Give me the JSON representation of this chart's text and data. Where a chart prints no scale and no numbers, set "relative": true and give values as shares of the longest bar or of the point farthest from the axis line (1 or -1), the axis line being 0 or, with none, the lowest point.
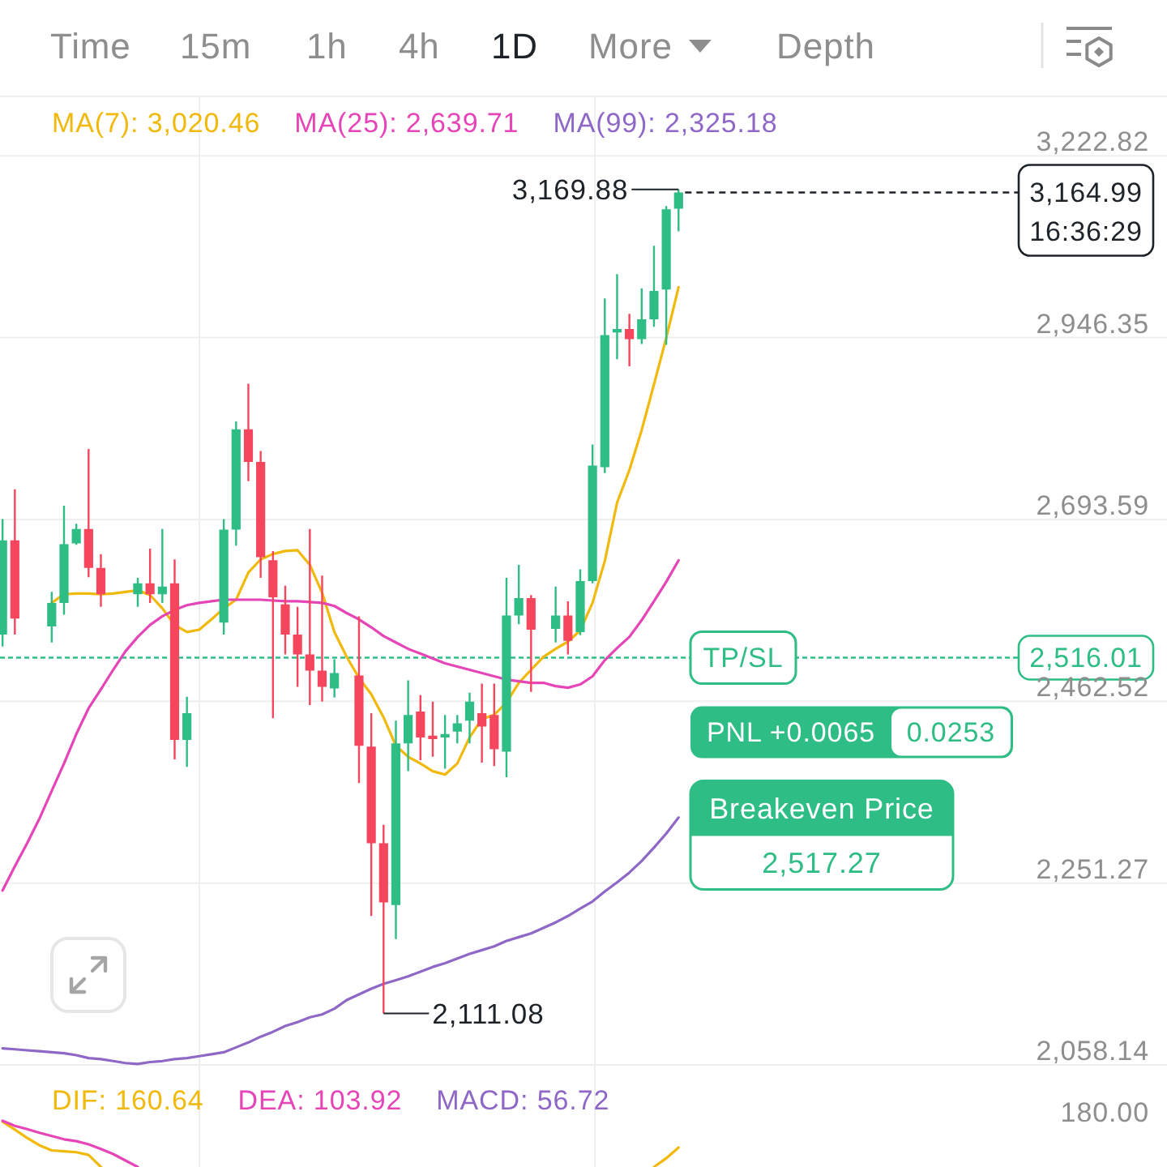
{
  "chart_data": [
    {
      "type": "other",
      "annotations": [
        "Time",
        "15m",
        "1h",
        "4h",
        "1D",
        "More",
        "Depth"
      ]
    },
    {
      "type": "candlestick",
      "categories": [
        null,
        null,
        null,
        null,
        null,
        null,
        null,
        null,
        null,
        null,
        null,
        null,
        null,
        null,
        null,
        null,
        null,
        null,
        null,
        null,
        null,
        null,
        null,
        null,
        null,
        null,
        null,
        null,
        null,
        null,
        null,
        null,
        null,
        null,
        null,
        null,
        null,
        null,
        null,
        null,
        null,
        null,
        null,
        null,
        null,
        null,
        null,
        null,
        null,
        null,
        null,
        null,
        null,
        null,
        null,
        null
      ],
      "ohlc": [
        [
          2545,
          2694,
          2530,
          2666
        ],
        [
          2666,
          2734,
          2545,
          2565
        ],
        null,
        null,
        [
          2555,
          2599,
          2535,
          2585
        ],
        [
          2585,
          2712,
          2570,
          2661
        ],
        [
          2662,
          2688,
          2660,
          2681
        ],
        [
          2681,
          2789,
          2618,
          2630
        ],
        [
          2630,
          2648,
          2580,
          2596
        ],
        null,
        null,
        [
          2596,
          2617,
          2580,
          2610
        ],
        [
          2610,
          2655,
          2585,
          2596
        ],
        [
          2596,
          2681,
          2585,
          2606
        ],
        [
          2610,
          2641,
          2393,
          2416
        ],
        [
          2416,
          2468,
          2384,
          2448
        ],
        null,
        null,
        [
          2560,
          2694,
          2545,
          2680
        ],
        [
          2680,
          2827,
          2659,
          2816
        ],
        [
          2816,
          2880,
          2745,
          2771
        ],
        [
          2771,
          2786,
          2617,
          2644
        ],
        [
          2640,
          2652,
          2442,
          2592
        ],
        [
          2583,
          2607,
          2520,
          2545
        ],
        [
          2545,
          2580,
          2480,
          2520
        ],
        [
          2520,
          2681,
          2458,
          2500
        ],
        [
          2500,
          2620,
          2462,
          2480
        ],
        [
          2478,
          2514,
          2467,
          2497
        ],
        null,
        [
          2494,
          2568,
          2365,
          2409
        ],
        [
          2408,
          2448,
          2215,
          2296
        ],
        [
          2296,
          2317,
          2111.08,
          2230
        ],
        [
          2227,
          2439,
          2190,
          2412
        ],
        [
          2412,
          2488,
          2379,
          2446
        ],
        [
          2450,
          2470,
          2392,
          2419
        ],
        [
          2421,
          2462,
          2396,
          2417
        ],
        [
          2419,
          2446,
          2382,
          2423
        ],
        [
          2426,
          2446,
          2412,
          2436
        ],
        [
          2439,
          2473,
          2412,
          2462
        ],
        [
          2448,
          2484,
          2389,
          2432
        ],
        [
          2446,
          2484,
          2385,
          2405
        ],
        [
          2402,
          2617,
          2372,
          2569
        ],
        [
          2569,
          2634,
          2558,
          2591
        ],
        [
          2591,
          2595,
          2474,
          2551
        ],
        null,
        [
          2552,
          2606,
          2535,
          2569
        ],
        [
          2569,
          2587,
          2520,
          2537
        ],
        [
          2548,
          2628,
          2544,
          2613
        ],
        [
          2613,
          2795,
          2610,
          2766
        ],
        [
          2764,
          3004,
          2756,
          2950
        ],
        [
          2954,
          3040,
          2915,
          2959
        ],
        [
          2959,
          2981,
          2905,
          2944
        ],
        [
          2944,
          3019,
          2937,
          2973
        ],
        [
          2973,
          3083,
          2962,
          3015
        ],
        [
          3017,
          3144,
          2936,
          3139
        ],
        [
          3140,
          3169.88,
          3105,
          3164.99
        ]
      ],
      "colors": [
        "#2ebd85",
        "#f6465d",
        null,
        null,
        "#2ebd85",
        "#2ebd85",
        "#2ebd85",
        "#f6465d",
        "#f6465d",
        null,
        null,
        "#2ebd85",
        "#f6465d",
        "#2ebd85",
        "#f6465d",
        "#2ebd85",
        null,
        null,
        "#2ebd85",
        "#2ebd85",
        "#f6465d",
        "#f6465d",
        "#f6465d",
        "#f6465d",
        "#f6465d",
        "#f6465d",
        "#f6465d",
        "#2ebd85",
        null,
        "#f6465d",
        "#f6465d",
        "#f6465d",
        "#2ebd85",
        "#2ebd85",
        "#f6465d",
        "#f6465d",
        "#2ebd85",
        "#2ebd85",
        "#2ebd85",
        "#f6465d",
        "#f6465d",
        "#2ebd85",
        "#2ebd85",
        "#f6465d",
        null,
        "#2ebd85",
        "#f6465d",
        "#2ebd85",
        "#2ebd85",
        "#2ebd85",
        "#2ebd85",
        "#f6465d",
        "#2ebd85",
        "#2ebd85",
        "#2ebd85",
        "#2ebd85"
      ],
      "series": [
        {
          "name": "MA(7): 3,020.46",
          "type": "line",
          "color": "#f0b90b",
          "values": [
            null,
            null,
            null,
            null,
            2585,
            2596,
            2597,
            2597,
            2596,
            2597,
            2599,
            2601,
            2595,
            2578,
            2557,
            2548,
            2551,
            2564,
            2578,
            2589,
            2624,
            2641,
            2648,
            2652,
            2653,
            2634,
            2598,
            2548,
            2517,
            2491,
            2471,
            2443,
            2409,
            2396,
            2388,
            2379,
            2375,
            2388,
            2419,
            2441,
            2446,
            2461,
            2485,
            2501,
            2517,
            2527,
            2536,
            2550,
            2585,
            2639,
            2716,
            2760,
            2815,
            2879,
            2946,
            3020.46
          ]
        },
        {
          "name": "MA(25): 2,639.71",
          "type": "line",
          "color": "#e645b8",
          "values": [
            2243,
            2270,
            2296,
            2324,
            2356,
            2388,
            2423,
            2454,
            2477,
            2501,
            2524,
            2542,
            2557,
            2568,
            2576,
            2582,
            2585,
            2587,
            2589,
            2589,
            2589,
            2589,
            2588,
            2587,
            2587,
            2586,
            2585,
            2581,
            2572,
            2564,
            2554,
            2543,
            2535,
            2527,
            2521,
            2515,
            2509,
            2505,
            2501,
            2497,
            2493,
            2489,
            2487,
            2485,
            2485,
            2481,
            2479,
            2483,
            2493,
            2513,
            2528,
            2542,
            2563,
            2587,
            2612,
            2639.71
          ]
        },
        {
          "name": "MA(99): 2,325.18",
          "type": "line",
          "color": "#8e67c7",
          "values": [
            2075,
            2074,
            2073,
            2072,
            2071,
            2070,
            2068,
            2065,
            2064,
            2062,
            2060,
            2059,
            2061,
            2062,
            2064,
            2065,
            2067,
            2069,
            2071,
            2076,
            2081,
            2087,
            2092,
            2098,
            2102,
            2107,
            2110,
            2116,
            2125,
            2131,
            2137,
            2142,
            2146,
            2150,
            2155,
            2160,
            2164,
            2169,
            2174,
            2178,
            2182,
            2188,
            2192,
            2196,
            2202,
            2208,
            2215,
            2223,
            2231,
            2242,
            2252,
            2263,
            2276,
            2291,
            2307,
            2325.18
          ]
        }
      ],
      "ylim": [
        2045,
        3312
      ],
      "log": true,
      "yticks": [
        {
          "value": 3222.82,
          "label": "3,222.82"
        },
        {
          "value": 2946.35,
          "label": "2,946.35"
        },
        {
          "value": 2693.59,
          "label": "2,693.59"
        },
        {
          "value": 2462.52,
          "label": "2,462.52"
        },
        {
          "value": 2251.27,
          "label": "2,251.27"
        },
        {
          "value": 2058.14,
          "label": "2,058.14"
        }
      ],
      "grid": true,
      "legend": "top",
      "ref_lines": [
        {
          "axis": "y",
          "value": 3164.99,
          "label": "3,164.99",
          "color": "#1e2329",
          "line_style": "dashed"
        },
        {
          "axis": "y",
          "value": 2516.01,
          "label": "2,516.01",
          "color": "#2ebd85",
          "line_style": "dotted"
        }
      ],
      "annotations": [
        "16:36:29",
        "3,169.88",
        "2,111.08",
        "Breakeven Price",
        "2,517.27",
        "PNL +0.0065",
        "0.0253",
        "TP/SL"
      ]
    },
    {
      "type": "line",
      "relative": true,
      "categories": [
        null,
        null,
        null,
        null,
        null,
        null,
        null,
        null,
        null,
        null,
        null,
        null,
        null,
        null,
        null,
        null,
        null,
        null,
        null,
        null,
        null,
        null,
        null,
        null,
        null,
        null,
        null,
        null,
        null,
        null,
        null,
        null,
        null,
        null,
        null,
        null,
        null,
        null,
        null,
        null,
        null,
        null,
        null,
        null,
        null,
        null,
        null,
        null,
        null,
        null,
        null,
        null,
        null,
        null,
        null,
        null
      ],
      "series": [
        {
          "name": "DIF: 160.64",
          "color": "#f0b90b",
          "values": [
            0.98,
            0.81,
            0.63,
            0.47,
            0.36,
            0.34,
            0.32,
            0.26,
            0,
            null,
            null,
            null,
            null,
            null,
            null,
            null,
            null,
            null,
            null,
            null,
            null,
            null,
            null,
            null,
            null,
            null,
            null,
            null,
            null,
            null,
            null,
            null,
            null,
            null,
            null,
            null,
            null,
            null,
            null,
            null,
            null,
            null,
            null,
            null,
            null,
            null,
            null,
            null,
            null,
            null,
            null,
            null,
            null,
            0,
            0.19,
            0.42
          ]
        },
        {
          "name": "DEA: 103.92",
          "color": "#e645b8",
          "values": [
            1,
            0.89,
            0.82,
            0.74,
            0.67,
            0.6,
            0.56,
            0.49,
            0.39,
            0.28,
            0.14,
            0,
            null,
            null,
            null,
            null,
            null,
            null,
            null,
            null,
            null,
            null,
            null,
            null,
            null,
            null,
            null,
            null,
            null,
            null,
            null,
            null,
            null,
            null,
            null,
            null,
            null,
            null,
            null,
            null,
            null,
            null,
            null,
            null,
            null,
            null,
            null,
            null,
            null,
            null,
            null,
            null,
            null,
            null,
            null,
            null
          ]
        },
        {
          "name": "MACD: 56.72",
          "color": "#8e67c7",
          "values": [
            null,
            null,
            null,
            null,
            null,
            null,
            null,
            null,
            null,
            null,
            null,
            null,
            null,
            null,
            null,
            null,
            null,
            null,
            null,
            null,
            null,
            null,
            null,
            null,
            null,
            null,
            null,
            null,
            null,
            null,
            null,
            null,
            null,
            null,
            null,
            null,
            null,
            null,
            null,
            null,
            null,
            null,
            null,
            null,
            null,
            null,
            null,
            null,
            null,
            null,
            null,
            null,
            null,
            null,
            null,
            null
          ]
        }
      ],
      "grid": "x",
      "legend": "top",
      "annotations": [
        "180.00"
      ]
    }
  ]
}
